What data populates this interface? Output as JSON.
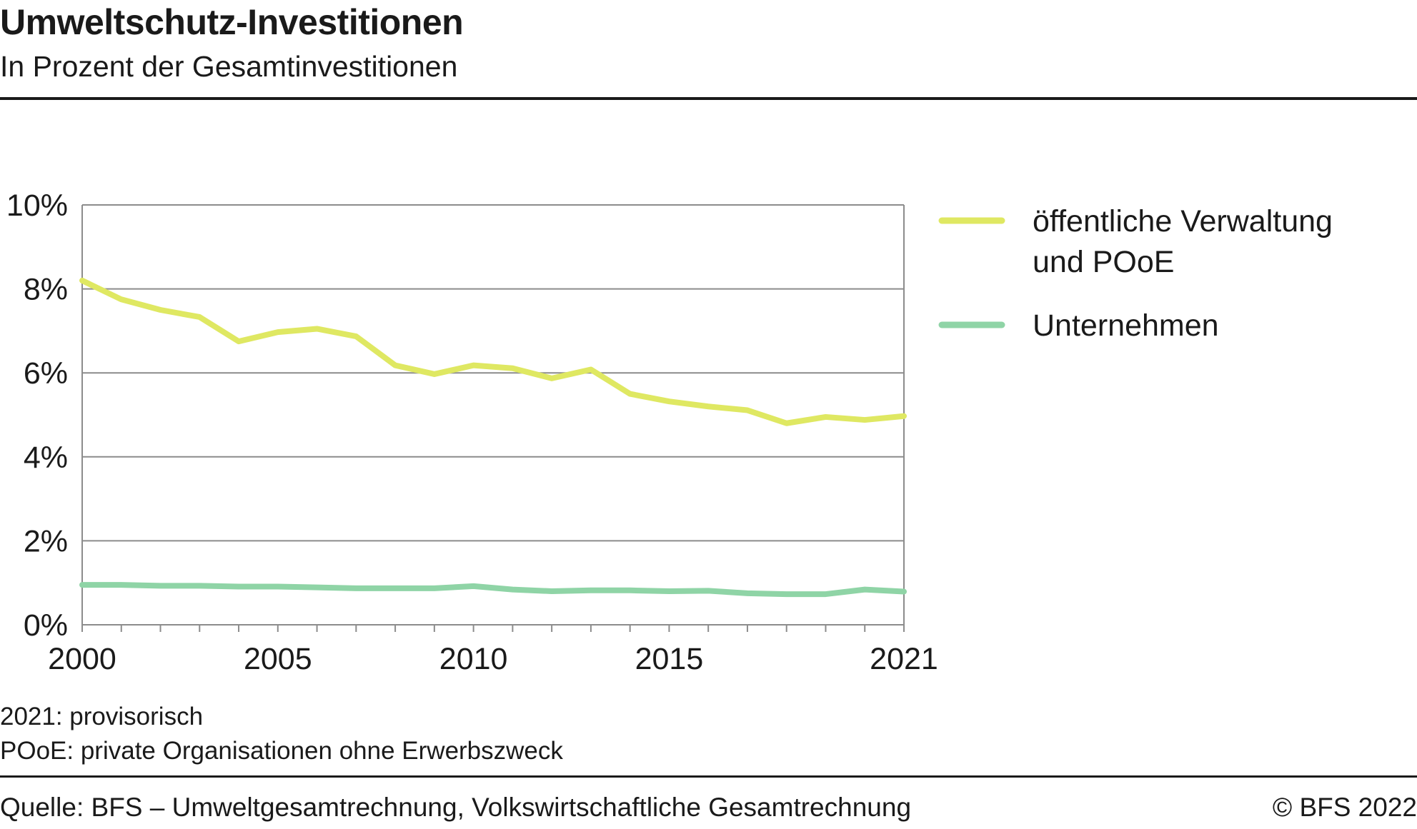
{
  "header": {
    "title": "Umweltschutz-Investitionen",
    "subtitle": "In Prozent der Gesamtinvestitionen"
  },
  "notes": [
    "2021: provisorisch",
    "POoE: private Organisationen ohne Erwerbszweck"
  ],
  "footer": {
    "source": "Quelle: BFS – Umweltgesamtrechnung, Volkswirtschaftliche Gesamtrechnung",
    "copyright": "© BFS 2022"
  },
  "chart_data": {
    "type": "line",
    "title": "Umweltschutz-Investitionen",
    "subtitle": "In Prozent der Gesamtinvestitionen",
    "x": [
      2000,
      2001,
      2002,
      2003,
      2004,
      2005,
      2006,
      2007,
      2008,
      2009,
      2010,
      2011,
      2012,
      2013,
      2014,
      2015,
      2016,
      2017,
      2018,
      2019,
      2020,
      2021
    ],
    "x_tick_labels": [
      "2000",
      "2005",
      "2010",
      "2015",
      "2021"
    ],
    "x_tick_values": [
      2000,
      2005,
      2010,
      2015,
      2021
    ],
    "xlim": [
      2000,
      2021
    ],
    "ylim": [
      0,
      10
    ],
    "y_ticks": [
      0,
      2,
      4,
      6,
      8,
      10
    ],
    "y_tick_labels": [
      "0%",
      "2%",
      "4%",
      "6%",
      "8%",
      "10%"
    ],
    "grid": true,
    "legend_position": "right",
    "series": [
      {
        "name": "öffentliche Verwaltung und POoE",
        "legend_lines": [
          "öffentliche Verwaltung",
          "und POoE"
        ],
        "color": "#dfe862",
        "values": [
          8.2,
          7.75,
          7.5,
          7.33,
          6.75,
          6.97,
          7.05,
          6.87,
          6.18,
          5.97,
          6.18,
          6.11,
          5.87,
          6.08,
          5.5,
          5.32,
          5.2,
          5.11,
          4.8,
          4.95,
          4.88,
          4.97
        ]
      },
      {
        "name": "Unternehmen",
        "legend_lines": [
          "Unternehmen"
        ],
        "color": "#8fd4a6",
        "values": [
          0.95,
          0.95,
          0.93,
          0.93,
          0.91,
          0.91,
          0.89,
          0.87,
          0.87,
          0.87,
          0.92,
          0.84,
          0.8,
          0.82,
          0.82,
          0.8,
          0.81,
          0.75,
          0.73,
          0.73,
          0.84,
          0.79
        ]
      }
    ]
  }
}
